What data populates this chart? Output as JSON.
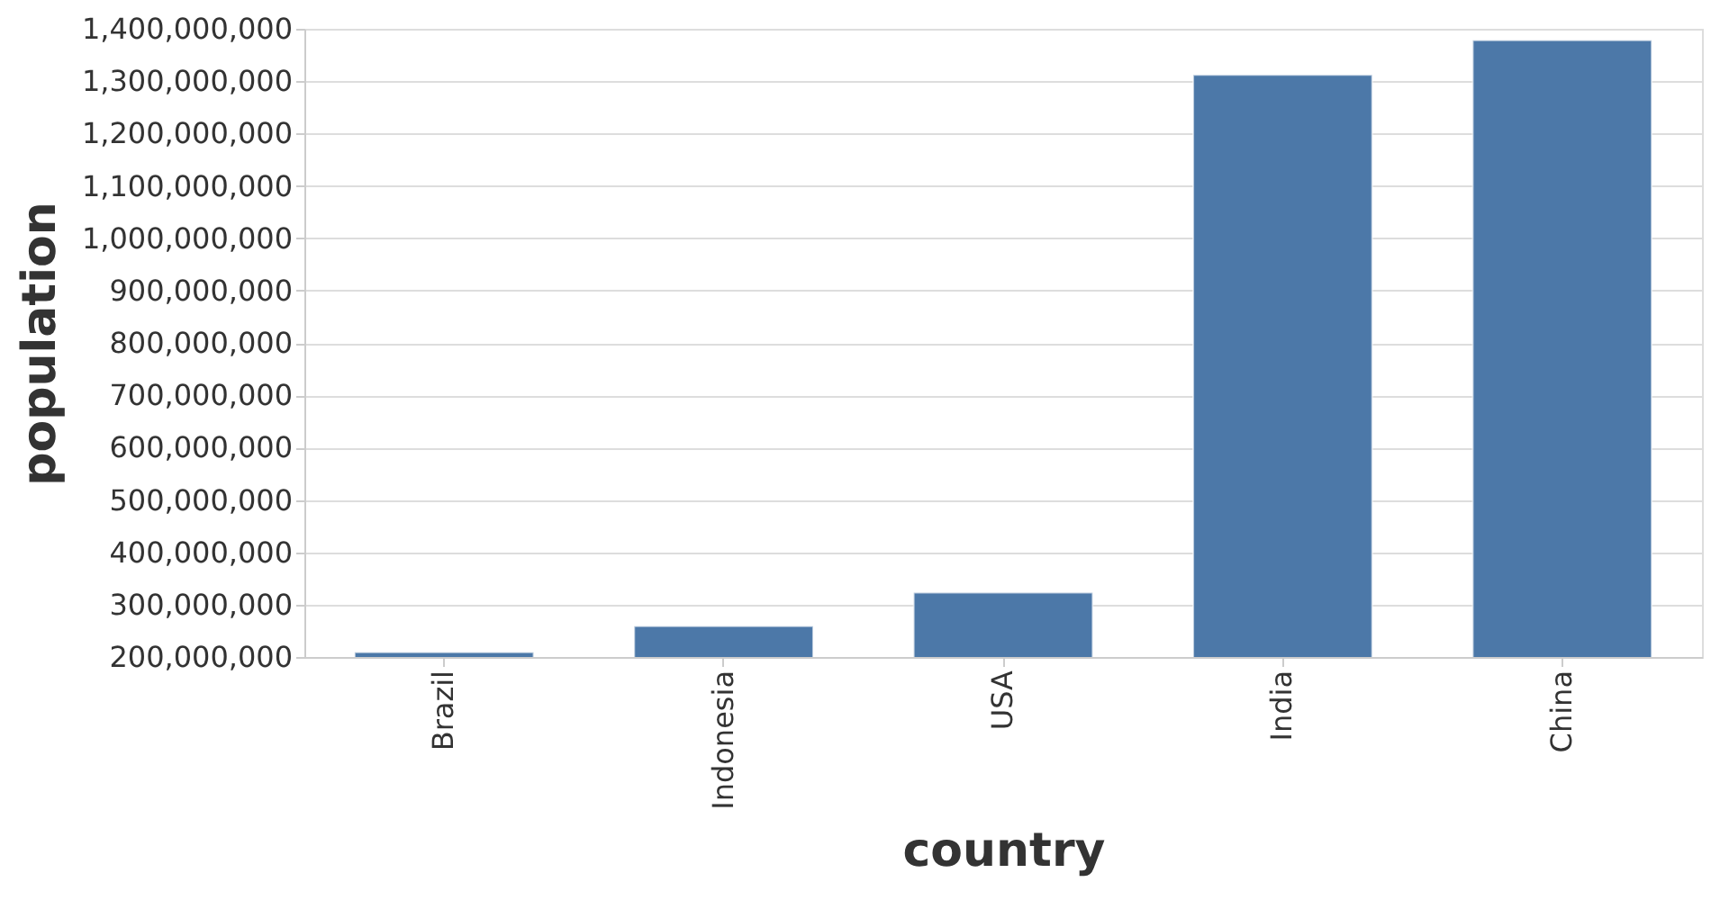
{
  "chart_data": {
    "type": "bar",
    "xlabel": "country",
    "ylabel": "population",
    "categories": [
      "Brazil",
      "Indonesia",
      "USA",
      "India",
      "China"
    ],
    "values": [
      209000000,
      259000000,
      323000000,
      1312000000,
      1378000000
    ],
    "color": "#4c78a8",
    "ylim": [
      200000000,
      1400000000
    ],
    "yticks": [
      {
        "value": 200000000,
        "label": "200,000,000"
      },
      {
        "value": 300000000,
        "label": "300,000,000"
      },
      {
        "value": 400000000,
        "label": "400,000,000"
      },
      {
        "value": 500000000,
        "label": "500,000,000"
      },
      {
        "value": 600000000,
        "label": "600,000,000"
      },
      {
        "value": 700000000,
        "label": "700,000,000"
      },
      {
        "value": 800000000,
        "label": "800,000,000"
      },
      {
        "value": 900000000,
        "label": "900,000,000"
      },
      {
        "value": 1000000000,
        "label": "1,000,000,000"
      },
      {
        "value": 1100000000,
        "label": "1,100,000,000"
      },
      {
        "value": 1200000000,
        "label": "1,200,000,000"
      },
      {
        "value": 1300000000,
        "label": "1,300,000,000"
      },
      {
        "value": 1400000000,
        "label": "1,400,000,000"
      }
    ],
    "grid": true
  }
}
